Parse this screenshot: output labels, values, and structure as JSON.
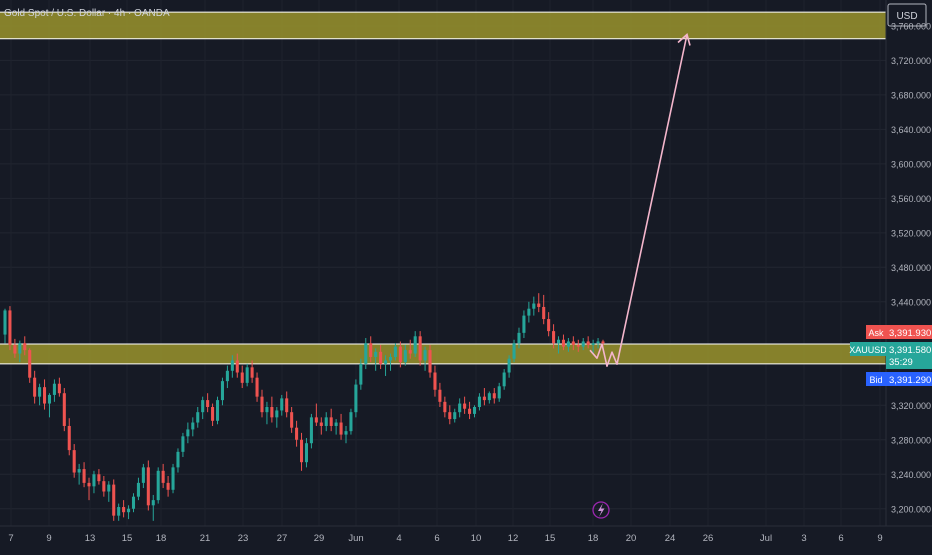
{
  "header": {
    "title": "Gold Spot / U.S. Dollar · 4h · OANDA",
    "currency": "USD"
  },
  "price_axis": {
    "ticks": [
      "3,760.000",
      "3,720.000",
      "3,680.000",
      "3,640.000",
      "3,600.000",
      "3,560.000",
      "3,520.000",
      "3,480.000",
      "3,440.000",
      "3,320.000",
      "3,280.000",
      "3,240.000",
      "3,200.000"
    ]
  },
  "time_axis": {
    "ticks": [
      "7",
      "9",
      "13",
      "15",
      "18",
      "21",
      "23",
      "27",
      "29",
      "Jun",
      "4",
      "6",
      "10",
      "12",
      "15",
      "18",
      "20",
      "24",
      "26",
      "Jul",
      "3",
      "6",
      "9"
    ]
  },
  "quote": {
    "ask_label": "Ask",
    "ask_value": "3,391.930",
    "symbol": "XAUUSD",
    "last_value": "3,391.580",
    "countdown": "35:29",
    "bid_label": "Bid",
    "bid_value": "3,391.290"
  },
  "colors": {
    "background": "#161a25",
    "up": "#26a69a",
    "down": "#ef5350",
    "zone_fill": "#8f8a2c",
    "arrow": "#f4b6cc",
    "ask_badge": "#ef5350",
    "last_badge": "#26a69a",
    "bid_badge": "#2962ff"
  },
  "icons": {
    "event_marker": "lightning-icon"
  },
  "chart_data": {
    "type": "candlestick",
    "symbol": "XAUUSD",
    "timeframe": "4h",
    "y_range": [
      3180,
      3790
    ],
    "zones": [
      {
        "name": "upper",
        "from": 3745,
        "to": 3776
      },
      {
        "name": "support",
        "from": 3368,
        "to": 3391
      }
    ],
    "projection": {
      "start_price": 3370,
      "end_price": 3750
    },
    "candles": [
      [
        3402,
        3432,
        3392,
        3430
      ],
      [
        3430,
        3435,
        3384,
        3390
      ],
      [
        3390,
        3397,
        3375,
        3380
      ],
      [
        3380,
        3395,
        3370,
        3392
      ],
      [
        3392,
        3400,
        3378,
        3384
      ],
      [
        3384,
        3386,
        3346,
        3352
      ],
      [
        3352,
        3360,
        3322,
        3330
      ],
      [
        3330,
        3345,
        3320,
        3341
      ],
      [
        3341,
        3350,
        3315,
        3322
      ],
      [
        3322,
        3334,
        3306,
        3332
      ],
      [
        3332,
        3350,
        3324,
        3345
      ],
      [
        3345,
        3352,
        3330,
        3334
      ],
      [
        3334,
        3340,
        3290,
        3296
      ],
      [
        3296,
        3305,
        3262,
        3268
      ],
      [
        3268,
        3275,
        3236,
        3242
      ],
      [
        3242,
        3252,
        3228,
        3246
      ],
      [
        3246,
        3254,
        3225,
        3230
      ],
      [
        3230,
        3236,
        3210,
        3226
      ],
      [
        3226,
        3244,
        3218,
        3240
      ],
      [
        3240,
        3246,
        3228,
        3232
      ],
      [
        3232,
        3238,
        3214,
        3220
      ],
      [
        3220,
        3232,
        3208,
        3228
      ],
      [
        3228,
        3234,
        3186,
        3192
      ],
      [
        3192,
        3206,
        3186,
        3202
      ],
      [
        3202,
        3210,
        3190,
        3196
      ],
      [
        3196,
        3204,
        3188,
        3200
      ],
      [
        3200,
        3218,
        3196,
        3214
      ],
      [
        3214,
        3236,
        3210,
        3230
      ],
      [
        3230,
        3252,
        3224,
        3248
      ],
      [
        3248,
        3256,
        3198,
        3204
      ],
      [
        3204,
        3216,
        3186,
        3210
      ],
      [
        3210,
        3248,
        3206,
        3244
      ],
      [
        3244,
        3252,
        3224,
        3230
      ],
      [
        3230,
        3238,
        3214,
        3222
      ],
      [
        3222,
        3252,
        3218,
        3248
      ],
      [
        3248,
        3270,
        3242,
        3266
      ],
      [
        3266,
        3288,
        3260,
        3284
      ],
      [
        3284,
        3300,
        3276,
        3292
      ],
      [
        3292,
        3306,
        3284,
        3300
      ],
      [
        3300,
        3318,
        3294,
        3312
      ],
      [
        3312,
        3330,
        3304,
        3326
      ],
      [
        3326,
        3334,
        3312,
        3318
      ],
      [
        3318,
        3322,
        3296,
        3302
      ],
      [
        3302,
        3330,
        3298,
        3326
      ],
      [
        3326,
        3352,
        3320,
        3348
      ],
      [
        3348,
        3366,
        3340,
        3360
      ],
      [
        3360,
        3378,
        3352,
        3372
      ],
      [
        3372,
        3380,
        3352,
        3358
      ],
      [
        3358,
        3366,
        3340,
        3346
      ],
      [
        3346,
        3368,
        3342,
        3364
      ],
      [
        3364,
        3372,
        3346,
        3352
      ],
      [
        3352,
        3358,
        3324,
        3330
      ],
      [
        3330,
        3338,
        3306,
        3312
      ],
      [
        3312,
        3324,
        3298,
        3318
      ],
      [
        3318,
        3330,
        3300,
        3306
      ],
      [
        3306,
        3318,
        3294,
        3314
      ],
      [
        3314,
        3332,
        3308,
        3328
      ],
      [
        3328,
        3336,
        3306,
        3312
      ],
      [
        3312,
        3318,
        3288,
        3294
      ],
      [
        3294,
        3302,
        3272,
        3280
      ],
      [
        3280,
        3288,
        3244,
        3254
      ],
      [
        3254,
        3282,
        3248,
        3276
      ],
      [
        3276,
        3310,
        3270,
        3306
      ],
      [
        3306,
        3322,
        3296,
        3300
      ],
      [
        3300,
        3306,
        3286,
        3296
      ],
      [
        3296,
        3312,
        3290,
        3306
      ],
      [
        3306,
        3316,
        3290,
        3296
      ],
      [
        3296,
        3304,
        3286,
        3300
      ],
      [
        3300,
        3310,
        3280,
        3286
      ],
      [
        3286,
        3296,
        3276,
        3290
      ],
      [
        3290,
        3316,
        3286,
        3312
      ],
      [
        3312,
        3350,
        3306,
        3344
      ],
      [
        3344,
        3374,
        3338,
        3368
      ],
      [
        3368,
        3398,
        3362,
        3392
      ],
      [
        3392,
        3400,
        3370,
        3376
      ],
      [
        3376,
        3386,
        3360,
        3382
      ],
      [
        3382,
        3390,
        3362,
        3368
      ],
      [
        3368,
        3378,
        3354,
        3372
      ],
      [
        3372,
        3380,
        3360,
        3376
      ],
      [
        3376,
        3392,
        3372,
        3388
      ],
      [
        3388,
        3394,
        3364,
        3370
      ],
      [
        3370,
        3390,
        3366,
        3384
      ],
      [
        3384,
        3396,
        3374,
        3380
      ],
      [
        3380,
        3406,
        3376,
        3400
      ],
      [
        3400,
        3406,
        3366,
        3372
      ],
      [
        3372,
        3388,
        3360,
        3384
      ],
      [
        3384,
        3390,
        3352,
        3358
      ],
      [
        3358,
        3366,
        3330,
        3338
      ],
      [
        3338,
        3346,
        3318,
        3324
      ],
      [
        3324,
        3330,
        3306,
        3312
      ],
      [
        3312,
        3320,
        3298,
        3304
      ],
      [
        3304,
        3316,
        3300,
        3312
      ],
      [
        3312,
        3328,
        3306,
        3322
      ],
      [
        3322,
        3330,
        3310,
        3316
      ],
      [
        3316,
        3324,
        3304,
        3310
      ],
      [
        3310,
        3320,
        3306,
        3318
      ],
      [
        3318,
        3334,
        3314,
        3330
      ],
      [
        3330,
        3340,
        3320,
        3326
      ],
      [
        3326,
        3336,
        3322,
        3334
      ],
      [
        3334,
        3340,
        3322,
        3328
      ],
      [
        3328,
        3346,
        3324,
        3342
      ],
      [
        3342,
        3362,
        3338,
        3358
      ],
      [
        3358,
        3378,
        3352,
        3374
      ],
      [
        3374,
        3396,
        3370,
        3392
      ],
      [
        3392,
        3410,
        3386,
        3404
      ],
      [
        3404,
        3430,
        3398,
        3424
      ],
      [
        3424,
        3440,
        3416,
        3432
      ],
      [
        3432,
        3446,
        3424,
        3438
      ],
      [
        3438,
        3450,
        3428,
        3434
      ],
      [
        3434,
        3448,
        3414,
        3420
      ],
      [
        3420,
        3428,
        3400,
        3406
      ],
      [
        3406,
        3414,
        3386,
        3392
      ],
      [
        3392,
        3400,
        3380,
        3396
      ],
      [
        3396,
        3402,
        3384,
        3388
      ],
      [
        3388,
        3398,
        3382,
        3394
      ],
      [
        3394,
        3400,
        3384,
        3390
      ],
      [
        3390,
        3396,
        3382,
        3388
      ],
      [
        3388,
        3398,
        3384,
        3394
      ],
      [
        3394,
        3400,
        3386,
        3390
      ],
      [
        3390,
        3396,
        3380,
        3392
      ],
      [
        3392,
        3398,
        3386,
        3394
      ],
      [
        3394,
        3396,
        3384,
        3392
      ]
    ]
  }
}
